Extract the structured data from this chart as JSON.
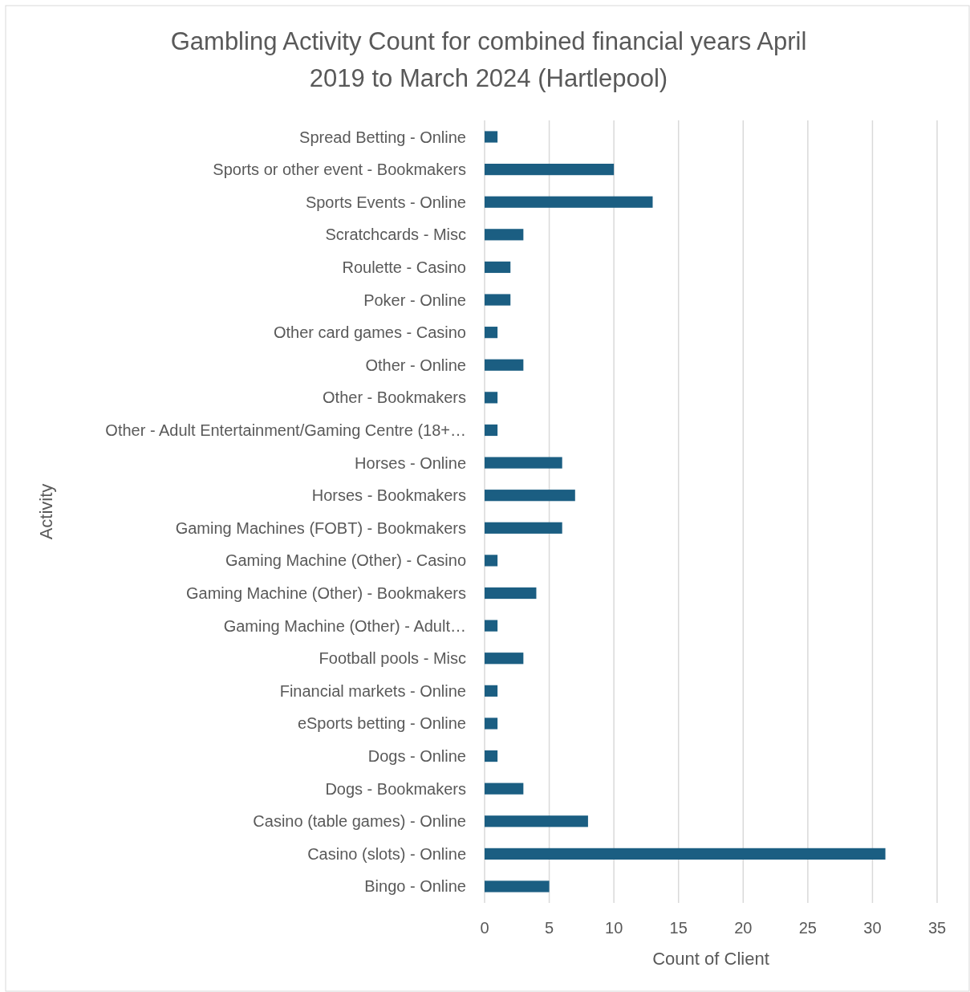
{
  "chart_data": {
    "type": "bar",
    "orientation": "horizontal",
    "title": "Gambling Activity Count for combined financial years April 2019 to March 2024 (Hartlepool)",
    "xlabel": "Count of Client",
    "ylabel": "Activity",
    "categories": [
      "Spread Betting - Online",
      "Sports or other event - Bookmakers",
      "Sports Events - Online",
      "Scratchcards - Misc",
      "Roulette - Casino",
      "Poker - Online",
      "Other card games - Casino",
      "Other - Online",
      "Other - Bookmakers",
      "Other - Adult Entertainment/Gaming Centre (18+…",
      "Horses - Online",
      "Horses - Bookmakers",
      "Gaming Machines (FOBT) - Bookmakers",
      "Gaming Machine (Other) - Casino",
      "Gaming Machine (Other) - Bookmakers",
      "Gaming Machine (Other) - Adult…",
      "Football pools - Misc",
      "Financial markets - Online",
      "eSports betting - Online",
      "Dogs - Online",
      "Dogs - Bookmakers",
      "Casino (table games) - Online",
      "Casino (slots) - Online",
      "Bingo - Online"
    ],
    "values": [
      1,
      10,
      13,
      3,
      2,
      2,
      1,
      3,
      1,
      1,
      6,
      7,
      6,
      1,
      4,
      1,
      3,
      1,
      1,
      1,
      3,
      8,
      31,
      5
    ],
    "color": "#1b5e82",
    "xlim": [
      0,
      35
    ],
    "xticks": [
      0,
      5,
      10,
      15,
      20,
      25,
      30,
      35
    ],
    "grid": "x"
  }
}
